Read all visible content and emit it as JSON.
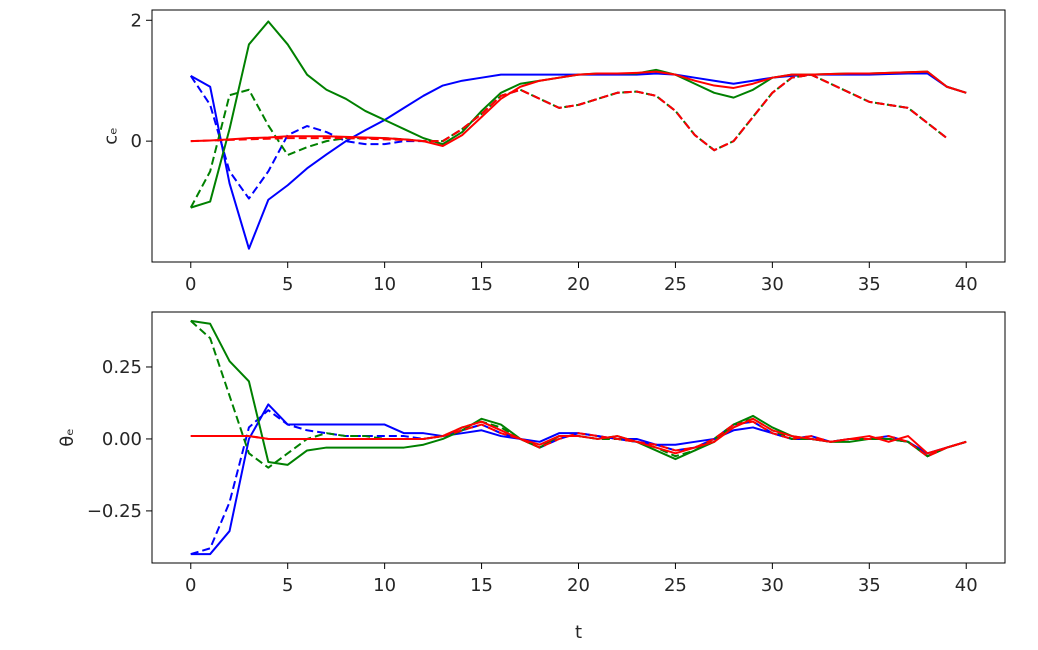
{
  "chart_data": [
    {
      "type": "line",
      "y_label": "cₑ",
      "x": [
        0,
        1,
        2,
        3,
        4,
        5,
        6,
        7,
        8,
        9,
        10,
        11,
        12,
        13,
        14,
        15,
        16,
        17,
        18,
        19,
        20,
        21,
        22,
        23,
        24,
        25,
        26,
        27,
        28,
        29,
        30,
        31,
        32,
        33,
        34,
        35,
        36,
        37,
        38,
        39,
        40
      ],
      "xlim": [
        -2,
        42
      ],
      "xticks": [
        0,
        5,
        10,
        15,
        20,
        25,
        30,
        35,
        40
      ],
      "ylim": [
        -2,
        2.17
      ],
      "yticks": [
        0,
        2
      ],
      "series": [
        {
          "color": "#0000ff",
          "linestyle": "solid",
          "values": [
            1.08,
            0.9,
            -0.7,
            -1.78,
            -0.97,
            -0.73,
            -0.45,
            -0.22,
            0.0,
            0.18,
            0.35,
            0.55,
            0.75,
            0.92,
            1.0,
            1.05,
            1.1,
            1.1,
            1.1,
            1.1,
            1.1,
            1.1,
            1.1,
            1.1,
            1.12,
            1.1,
            1.05,
            1.0,
            0.95,
            1.0,
            1.05,
            1.08,
            1.1,
            1.1,
            1.1,
            1.1,
            1.11,
            1.12,
            1.12,
            0.9,
            0.8
          ]
        },
        {
          "color": "#0000ff",
          "linestyle": "dashed",
          "values": [
            1.08,
            0.6,
            -0.5,
            -0.95,
            -0.5,
            0.1,
            0.25,
            0.15,
            0.0,
            -0.05,
            -0.05,
            0.0,
            0.0,
            0.0,
            0.2,
            0.45,
            0.75,
            0.85,
            0.7,
            0.55,
            0.6,
            0.7,
            0.8,
            0.82,
            0.75,
            0.5,
            0.1,
            -0.15,
            0.0,
            0.4,
            0.8,
            1.05,
            1.1,
            0.95,
            0.8,
            0.65,
            0.6,
            0.55,
            0.3,
            0.05,
            null
          ]
        },
        {
          "color": "#008000",
          "linestyle": "solid",
          "values": [
            -1.1,
            -1.0,
            0.2,
            1.6,
            1.98,
            1.6,
            1.1,
            0.85,
            0.7,
            0.5,
            0.35,
            0.2,
            0.05,
            -0.05,
            0.15,
            0.5,
            0.8,
            0.95,
            1.0,
            1.05,
            1.1,
            1.12,
            1.12,
            1.12,
            1.18,
            1.1,
            0.95,
            0.8,
            0.72,
            0.85,
            1.05,
            1.1,
            1.1,
            1.11,
            1.12,
            1.12,
            1.13,
            1.14,
            1.15,
            0.9,
            0.8
          ]
        },
        {
          "color": "#008000",
          "linestyle": "dashed",
          "values": [
            -1.1,
            -0.5,
            0.76,
            0.85,
            0.26,
            -0.23,
            -0.1,
            0.0,
            0.05,
            0.05,
            0.05,
            0.03,
            0.0,
            0.0,
            0.2,
            0.45,
            0.75,
            0.85,
            0.7,
            0.55,
            0.6,
            0.7,
            0.8,
            0.82,
            0.75,
            0.5,
            0.1,
            -0.15,
            0.0,
            0.4,
            0.8,
            1.05,
            1.1,
            0.95,
            0.8,
            0.65,
            0.6,
            0.55,
            0.3,
            0.05,
            null
          ]
        },
        {
          "color": "#ff0000",
          "linestyle": "solid",
          "values": [
            0,
            0.01,
            0.03,
            0.05,
            0.06,
            0.08,
            0.08,
            0.08,
            0.07,
            0.06,
            0.05,
            0.03,
            0.0,
            -0.08,
            0.1,
            0.4,
            0.7,
            0.9,
            1.0,
            1.05,
            1.1,
            1.12,
            1.12,
            1.13,
            1.15,
            1.1,
            1.0,
            0.92,
            0.88,
            0.95,
            1.05,
            1.1,
            1.1,
            1.11,
            1.12,
            1.12,
            1.13,
            1.14,
            1.15,
            0.9,
            0.8
          ]
        },
        {
          "color": "#ff0000",
          "linestyle": "dashed",
          "values": [
            0,
            0.01,
            0.02,
            0.03,
            0.04,
            0.05,
            0.05,
            0.05,
            0.05,
            0.04,
            0.03,
            0.02,
            0.0,
            0.0,
            0.2,
            0.45,
            0.75,
            0.85,
            0.7,
            0.55,
            0.6,
            0.7,
            0.8,
            0.82,
            0.75,
            0.5,
            0.1,
            -0.15,
            0.0,
            0.4,
            0.8,
            1.05,
            1.1,
            0.95,
            0.8,
            0.65,
            0.6,
            0.55,
            0.3,
            0.05,
            null
          ]
        }
      ]
    },
    {
      "type": "line",
      "y_label": "θₑ",
      "x_label": "t",
      "x": [
        0,
        1,
        2,
        3,
        4,
        5,
        6,
        7,
        8,
        9,
        10,
        11,
        12,
        13,
        14,
        15,
        16,
        17,
        18,
        19,
        20,
        21,
        22,
        23,
        24,
        25,
        26,
        27,
        28,
        29,
        30,
        31,
        32,
        33,
        34,
        35,
        36,
        37,
        38,
        39,
        40
      ],
      "xlim": [
        -2,
        42
      ],
      "xticks": [
        0,
        5,
        10,
        15,
        20,
        25,
        30,
        35,
        40
      ],
      "ylim": [
        -0.431,
        0.441
      ],
      "yticks": [
        {
          "value": -0.25,
          "label": "−0.25"
        },
        {
          "value": 0,
          "label": "0.00"
        },
        0.25
      ],
      "series": [
        {
          "color": "#0000ff",
          "linestyle": "solid",
          "values": [
            -0.4,
            -0.4,
            -0.32,
            0.0,
            0.12,
            0.05,
            0.05,
            0.05,
            0.05,
            0.05,
            0.05,
            0.02,
            0.02,
            0.01,
            0.02,
            0.03,
            0.01,
            0.0,
            -0.01,
            0.02,
            0.02,
            0.01,
            0.0,
            0.0,
            -0.02,
            -0.02,
            -0.01,
            0.0,
            0.03,
            0.04,
            0.02,
            0.0,
            0.0,
            -0.01,
            0.0,
            0.0,
            0.0,
            -0.01,
            -0.05,
            -0.03,
            -0.01
          ]
        },
        {
          "color": "#0000ff",
          "linestyle": "dashed",
          "values": [
            -0.4,
            -0.38,
            -0.22,
            0.04,
            0.1,
            0.05,
            0.03,
            0.02,
            0.01,
            0.01,
            0.01,
            0.01,
            0.0,
            0.01,
            0.03,
            0.05,
            0.02,
            0.0,
            -0.03,
            0.0,
            0.02,
            0.01,
            0.0,
            -0.01,
            -0.02,
            -0.04,
            -0.03,
            0.0,
            0.05,
            0.06,
            0.02,
            0.0,
            0.01,
            -0.01,
            0.0,
            0.0,
            0.01,
            -0.01,
            -0.06,
            -0.03,
            -0.01
          ]
        },
        {
          "color": "#008000",
          "linestyle": "solid",
          "values": [
            0.41,
            0.4,
            0.27,
            0.2,
            -0.08,
            -0.09,
            -0.04,
            -0.03,
            -0.03,
            -0.03,
            -0.03,
            -0.03,
            -0.02,
            0.0,
            0.03,
            0.07,
            0.05,
            0.0,
            -0.03,
            0.01,
            0.01,
            0.0,
            0.01,
            -0.01,
            -0.04,
            -0.07,
            -0.04,
            -0.01,
            0.05,
            0.08,
            0.04,
            0.01,
            0.0,
            -0.01,
            -0.01,
            0.0,
            0.0,
            -0.01,
            -0.06,
            -0.03,
            -0.01
          ]
        },
        {
          "color": "#008000",
          "linestyle": "dashed",
          "values": [
            0.41,
            0.35,
            0.15,
            -0.05,
            -0.1,
            -0.05,
            0.0,
            0.02,
            0.01,
            0.01,
            0.0,
            0.0,
            0.0,
            0.01,
            0.04,
            0.06,
            0.04,
            0.0,
            -0.03,
            0.01,
            0.01,
            0.0,
            0.0,
            -0.01,
            -0.03,
            -0.06,
            -0.04,
            0.0,
            0.05,
            0.07,
            0.03,
            0.0,
            0.0,
            -0.01,
            0.0,
            0.0,
            0.0,
            -0.01,
            -0.06,
            -0.03,
            -0.01
          ]
        },
        {
          "color": "#ff0000",
          "linestyle": "solid",
          "values": [
            0.01,
            0.01,
            0.01,
            0.01,
            0.0,
            0.0,
            0.0,
            0.0,
            0.0,
            0.0,
            0.0,
            0.0,
            0.0,
            0.01,
            0.04,
            0.06,
            0.03,
            0.0,
            -0.02,
            0.01,
            0.01,
            0.0,
            0.01,
            -0.01,
            -0.03,
            -0.05,
            -0.03,
            -0.01,
            0.04,
            0.07,
            0.03,
            0.01,
            0.0,
            -0.01,
            0.0,
            0.01,
            -0.01,
            0.01,
            -0.05,
            -0.03,
            -0.01
          ]
        },
        {
          "color": "#ff0000",
          "linestyle": "dashed",
          "values": [
            0.01,
            0.01,
            0.01,
            0.01,
            0.0,
            0.0,
            0.0,
            0.0,
            0.0,
            0.0,
            0.0,
            0.0,
            0.0,
            0.01,
            0.03,
            0.05,
            0.02,
            0.0,
            -0.03,
            0.0,
            0.02,
            0.01,
            0.0,
            -0.01,
            -0.02,
            -0.04,
            -0.03,
            0.0,
            0.05,
            0.06,
            0.02,
            0.0,
            0.01,
            -0.01,
            0.0,
            0.0,
            0.01,
            -0.01,
            -0.06,
            -0.03,
            -0.01
          ]
        }
      ]
    }
  ]
}
